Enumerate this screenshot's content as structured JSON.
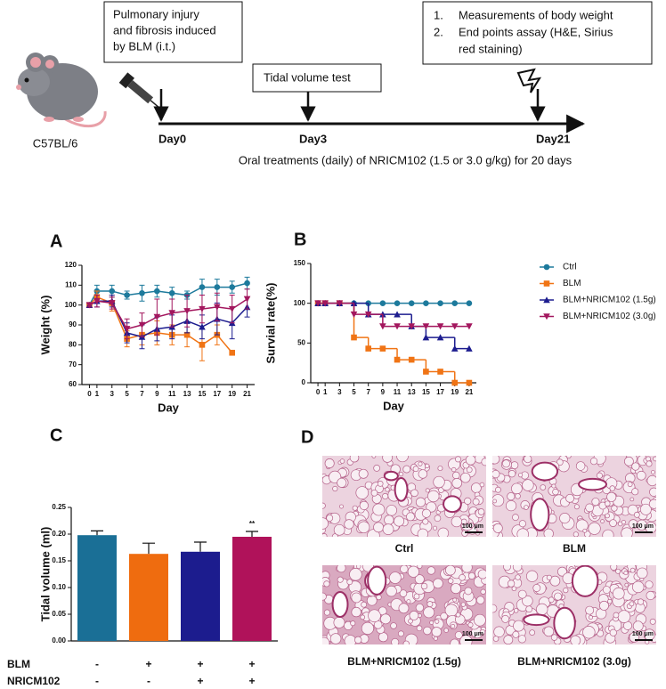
{
  "timeline": {
    "strain": "C57BL/6",
    "box1": [
      "Pulmonary injury",
      "and fibrosis induced",
      "by BLM (i.t.)"
    ],
    "box2": "Tidal volume test",
    "box3": [
      {
        "number": "1.",
        "lines": [
          "Measurements of body weight"
        ]
      },
      {
        "number": "2.",
        "lines": [
          "End points assay (H&E, Sirius",
          "red staining)"
        ]
      }
    ],
    "days": [
      "Day0",
      "Day3",
      "Day21"
    ],
    "treatment": "Oral treatments (daily) of NRICM102  (1.5 or 3.0 g/kg) for 20 days"
  },
  "panel_labels": [
    "A",
    "B",
    "C",
    "D"
  ],
  "chart_data": [
    {
      "type": "line",
      "xlabel": "Day",
      "ylabel": "Weight (%)",
      "x": [
        0,
        1,
        3,
        5,
        7,
        9,
        11,
        13,
        15,
        17,
        19,
        21
      ],
      "xlim": [
        -1,
        22
      ],
      "xticks": [
        0,
        1,
        3,
        5,
        7,
        9,
        11,
        13,
        15,
        17,
        19,
        21
      ],
      "ylim": [
        60,
        120
      ],
      "yticks": [
        60,
        70,
        80,
        90,
        100,
        110,
        120
      ],
      "series": [
        {
          "name": "Ctrl",
          "color": "#1d7a9c",
          "marker": "circle",
          "values": [
            100,
            107,
            107,
            105,
            106,
            107,
            106,
            105,
            109,
            109,
            109,
            111
          ],
          "errors": [
            1,
            3,
            3,
            2,
            4,
            3,
            3,
            2,
            4,
            4,
            3,
            3
          ]
        },
        {
          "name": "BLM",
          "color": "#f07415",
          "marker": "square",
          "values": [
            100,
            104,
            101,
            83,
            85,
            86,
            85,
            85,
            80,
            85,
            76,
            null
          ],
          "errors": [
            1,
            3,
            4,
            4,
            5,
            6,
            5,
            6,
            8,
            5,
            1,
            null
          ]
        },
        {
          "name": "BLM+NRICM102 (1.5g)",
          "color": "#1d1d8f",
          "marker": "triangle",
          "values": [
            100,
            102,
            102,
            86,
            84,
            88,
            89,
            92,
            89,
            93,
            91,
            99
          ],
          "errors": [
            1,
            3,
            3,
            5,
            6,
            6,
            6,
            6,
            6,
            8,
            8,
            5
          ]
        },
        {
          "name": "BLM+NRICM102 (3.0g)",
          "color": "#a3175e",
          "marker": "triangle-down",
          "values": [
            100,
            102,
            101,
            88,
            90,
            94,
            96,
            97,
            98,
            99,
            98,
            103
          ],
          "errors": [
            1,
            3,
            3,
            5,
            6,
            9,
            7,
            8,
            7,
            7,
            7,
            5
          ]
        }
      ]
    },
    {
      "type": "step",
      "xlabel": "Day",
      "ylabel": "Survial rate(%)",
      "x": [
        0,
        1,
        3,
        5,
        7,
        9,
        11,
        13,
        15,
        17,
        19,
        21
      ],
      "xlim": [
        -1,
        22
      ],
      "xticks": [
        0,
        1,
        3,
        5,
        7,
        9,
        11,
        13,
        15,
        17,
        19,
        21
      ],
      "ylim": [
        0,
        150
      ],
      "yticks": [
        0,
        50,
        100,
        150
      ],
      "series": [
        {
          "name": "Ctrl",
          "color": "#1d7a9c",
          "marker": "circle",
          "values": [
            100,
            100,
            100,
            100,
            100,
            100,
            100,
            100,
            100,
            100,
            100,
            100
          ]
        },
        {
          "name": "BLM",
          "color": "#f07415",
          "marker": "square",
          "values": [
            100,
            100,
            100,
            57,
            43,
            43,
            29,
            29,
            14,
            14,
            0,
            0
          ]
        },
        {
          "name": "BLM+NRICM102 (1.5g)",
          "color": "#1d1d8f",
          "marker": "triangle",
          "values": [
            100,
            100,
            100,
            100,
            86,
            86,
            86,
            71,
            57,
            57,
            43,
            43
          ]
        },
        {
          "name": "BLM+NRICM102 (3.0g)",
          "color": "#a3175e",
          "marker": "triangle-down",
          "values": [
            100,
            100,
            100,
            86,
            86,
            71,
            71,
            71,
            71,
            71,
            71,
            71
          ]
        }
      ]
    },
    {
      "type": "bar",
      "ylabel": "Tidal volume (ml)",
      "categories": [
        null,
        null,
        null,
        null
      ],
      "values": [
        0.198,
        0.163,
        0.167,
        0.195
      ],
      "errors": [
        0.008,
        0.02,
        0.018,
        0.01
      ],
      "colors": [
        "#1a6f96",
        "#ef6c0f",
        "#1c1c8e",
        "#b0125a"
      ],
      "value_annotations": [
        null,
        null,
        null,
        "**"
      ],
      "ylim": [
        0,
        0.25
      ],
      "yticks": [
        {
          "value": 0,
          "label": "0.00"
        },
        {
          "value": 0.05,
          "label": "0.05"
        },
        {
          "value": 0.1,
          "label": "0.10"
        },
        {
          "value": 0.15,
          "label": "0.15"
        },
        {
          "value": 0.2,
          "label": "0.20"
        },
        {
          "value": 0.25,
          "label": "0.25"
        }
      ],
      "conditions": [
        {
          "name": "BLM",
          "values": [
            "-",
            "+",
            "+",
            "+"
          ]
        },
        {
          "name": "NRICM102",
          "values": [
            "-",
            "-",
            "+",
            "+"
          ]
        }
      ]
    }
  ],
  "histology": {
    "captions": [
      "Ctrl",
      "BLM",
      "BLM+NRICM102 (1.5g)",
      "BLM+NRICM102 (3.0g)"
    ],
    "scale_bar": "100 μm"
  }
}
